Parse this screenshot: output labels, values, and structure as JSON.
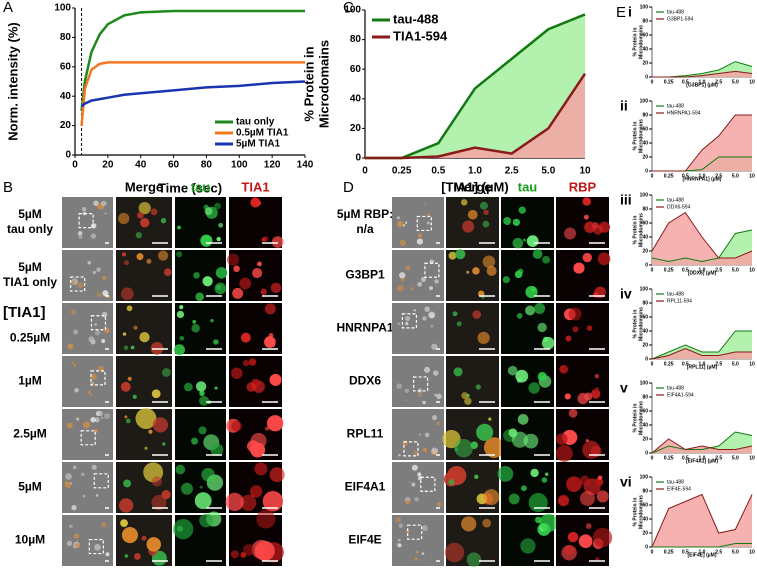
{
  "chart_data": [
    {
      "type": "line",
      "panel": "A",
      "y_label": "Norm. intensity (%)",
      "x_label": "Time (sec)",
      "x": [
        4,
        6,
        10,
        15,
        20,
        30,
        40,
        60,
        80,
        100,
        120,
        140
      ],
      "xlim": [
        0,
        140
      ],
      "xticks": [
        0,
        20,
        40,
        60,
        80,
        100,
        120,
        140
      ],
      "ylim": [
        0,
        100
      ],
      "yticks": [
        0,
        20,
        40,
        60,
        80,
        100
      ],
      "marker_x": 4,
      "legend": "lower right",
      "series": [
        {
          "name": "tau only",
          "color": "#1e8a1e",
          "values": [
            30,
            50,
            70,
            82,
            89,
            95,
            97,
            98,
            98,
            98,
            98,
            98
          ]
        },
        {
          "name": "0.5µM TIA1",
          "color": "#f07820",
          "values": [
            20,
            45,
            58,
            62,
            63,
            63,
            63,
            63,
            63,
            63,
            63,
            63
          ]
        },
        {
          "name": "5µM TIA1",
          "color": "#1a33b0",
          "values": [
            33,
            35,
            37,
            38,
            39,
            41,
            42,
            44,
            46,
            47,
            49,
            50
          ]
        }
      ]
    },
    {
      "type": "area",
      "panel": "C",
      "y_label": [
        "% Protein in",
        "Microdomains"
      ],
      "x_label": "[TIA1] (µM)",
      "categories": [
        "0",
        "0.25",
        "0.5",
        "1.0",
        "2.5",
        "5.0",
        "10"
      ],
      "ylim": [
        0,
        100
      ],
      "yticks": [
        0,
        20,
        40,
        60,
        80,
        100
      ],
      "legend": "upper left",
      "series": [
        {
          "name": "tau-488",
          "color": "#137a13",
          "fill": "#a6f0a0",
          "values": [
            0,
            0,
            10,
            47,
            67,
            87,
            97
          ]
        },
        {
          "name": "TIA1-594",
          "color": "#8b1a1a",
          "fill": "#f4a3a3",
          "values": [
            0,
            0,
            1,
            7,
            3,
            20,
            57
          ]
        }
      ]
    },
    {
      "type": "area",
      "panel": "E",
      "sub": "i",
      "y_label": [
        "% Protein in",
        "Microdomains"
      ],
      "x_label": "[G3BP1] (µM)",
      "categories": [
        "0",
        "0.25",
        "0.5",
        "1.0",
        "2.5",
        "5.0",
        "10"
      ],
      "ylim": [
        0,
        100
      ],
      "yticks": [
        0,
        20,
        40,
        60,
        80,
        100
      ],
      "legend": "upper left",
      "series": [
        {
          "name": "tau-488",
          "color": "#137a13",
          "fill": "#a6f0a0",
          "values": [
            0,
            0,
            2,
            5,
            10,
            22,
            15
          ]
        },
        {
          "name": "G3BP1-594",
          "color": "#8b1a1a",
          "fill": "#f4a3a3",
          "values": [
            0,
            0,
            0,
            2,
            5,
            8,
            5
          ]
        }
      ]
    },
    {
      "type": "area",
      "sub": "ii",
      "y_label": [
        "% Protein in",
        "Microdomains"
      ],
      "x_label": "[HNRNPA1] (µM)",
      "categories": [
        "0",
        "0.25",
        "0.5",
        "1.0",
        "2.5",
        "5.0",
        "10"
      ],
      "ylim": [
        0,
        100
      ],
      "yticks": [
        0,
        20,
        40,
        60,
        80,
        100
      ],
      "legend": "upper left",
      "series": [
        {
          "name": "tau-488",
          "color": "#137a13",
          "fill": "#a6f0a0",
          "values": [
            0,
            0,
            0,
            2,
            20,
            20,
            20
          ]
        },
        {
          "name": "HNRNPA1-594",
          "color": "#8b1a1a",
          "fill": "#f4a3a3",
          "values": [
            0,
            0,
            0,
            30,
            50,
            80,
            80
          ]
        }
      ]
    },
    {
      "type": "area",
      "sub": "iii",
      "y_label": [
        "% Protein in",
        "Microdomains"
      ],
      "x_label": "[DDX6] (µM)",
      "categories": [
        "0",
        "0.25",
        "0.5",
        "1.0",
        "2.5",
        "5.0",
        "10"
      ],
      "ylim": [
        0,
        100
      ],
      "yticks": [
        0,
        20,
        40,
        60,
        80,
        100
      ],
      "legend": "upper left",
      "series": [
        {
          "name": "tau-488",
          "color": "#137a13",
          "fill": "#a6f0a0",
          "values": [
            10,
            5,
            10,
            5,
            10,
            45,
            50
          ]
        },
        {
          "name": "DDX6-594",
          "color": "#8b1a1a",
          "fill": "#f4a3a3",
          "values": [
            20,
            60,
            75,
            40,
            10,
            10,
            20
          ]
        }
      ]
    },
    {
      "type": "area",
      "sub": "iv",
      "y_label": [
        "% Protein in",
        "Microdomains"
      ],
      "x_label": "[RPL11] (µM)",
      "categories": [
        "0",
        "0.25",
        "0.5",
        "1.0",
        "2.5",
        "5.0",
        "10"
      ],
      "ylim": [
        0,
        100
      ],
      "yticks": [
        0,
        20,
        40,
        60,
        80,
        100
      ],
      "legend": "upper left",
      "series": [
        {
          "name": "tau-488",
          "color": "#137a13",
          "fill": "#a6f0a0",
          "values": [
            0,
            10,
            20,
            10,
            10,
            40,
            40
          ]
        },
        {
          "name": "RPL11-594",
          "color": "#8b1a1a",
          "fill": "#f4a3a3",
          "values": [
            0,
            5,
            15,
            5,
            5,
            10,
            10
          ]
        }
      ]
    },
    {
      "type": "area",
      "sub": "v",
      "y_label": [
        "% Protein in",
        "Microdomains"
      ],
      "x_label": "[EIF4A1] (µM)",
      "categories": [
        "0",
        "0.25",
        "0.5",
        "1.0",
        "2.5",
        "5.0",
        "10"
      ],
      "ylim": [
        0,
        100
      ],
      "yticks": [
        0,
        20,
        40,
        60,
        80,
        100
      ],
      "legend": "upper left",
      "series": [
        {
          "name": "tau-488",
          "color": "#137a13",
          "fill": "#a6f0a0",
          "values": [
            0,
            10,
            5,
            5,
            10,
            30,
            25
          ]
        },
        {
          "name": "EIF4A1-594",
          "color": "#8b1a1a",
          "fill": "#f4a3a3",
          "values": [
            0,
            20,
            5,
            10,
            5,
            5,
            10
          ]
        }
      ]
    },
    {
      "type": "area",
      "sub": "vi",
      "y_label": [
        "% Protein in",
        "Microdomains"
      ],
      "x_label": "[EIF4E] (µM)",
      "categories": [
        "0",
        "0.25",
        "0.5",
        "1.0",
        "2.5",
        "5.0",
        "10"
      ],
      "ylim": [
        0,
        100
      ],
      "yticks": [
        0,
        20,
        40,
        60,
        80,
        100
      ],
      "legend": "upper left",
      "series": [
        {
          "name": "tau-488",
          "color": "#137a13",
          "fill": "#a6f0a0",
          "values": [
            0,
            0,
            0,
            0,
            0,
            5,
            5
          ]
        },
        {
          "name": "EIF4E-594",
          "color": "#8b1a1a",
          "fill": "#f4a3a3",
          "values": [
            0,
            55,
            65,
            75,
            20,
            25,
            75
          ]
        }
      ]
    }
  ],
  "image_panels": [
    {
      "panel": "B",
      "columns": [
        "Merge",
        "tau",
        "TIA1"
      ],
      "group_label": "[TIA1]",
      "rows": [
        [
          "5µM",
          "tau only"
        ],
        [
          "5µM",
          "TIA1 only"
        ],
        [
          "0.25µM"
        ],
        [
          "1µM"
        ],
        [
          "2.5µM"
        ],
        [
          "5µM"
        ],
        [
          "10µM"
        ]
      ]
    },
    {
      "panel": "D",
      "columns": [
        "Merge",
        "tau",
        "RBP"
      ],
      "rows": [
        [
          "5µM RBP:",
          "n/a"
        ],
        [
          "G3BP1"
        ],
        [
          "HNRNPA1"
        ],
        [
          "DDX6"
        ],
        [
          "RPL11"
        ],
        [
          "EIF4A1"
        ],
        [
          "EIF4E"
        ]
      ]
    }
  ]
}
